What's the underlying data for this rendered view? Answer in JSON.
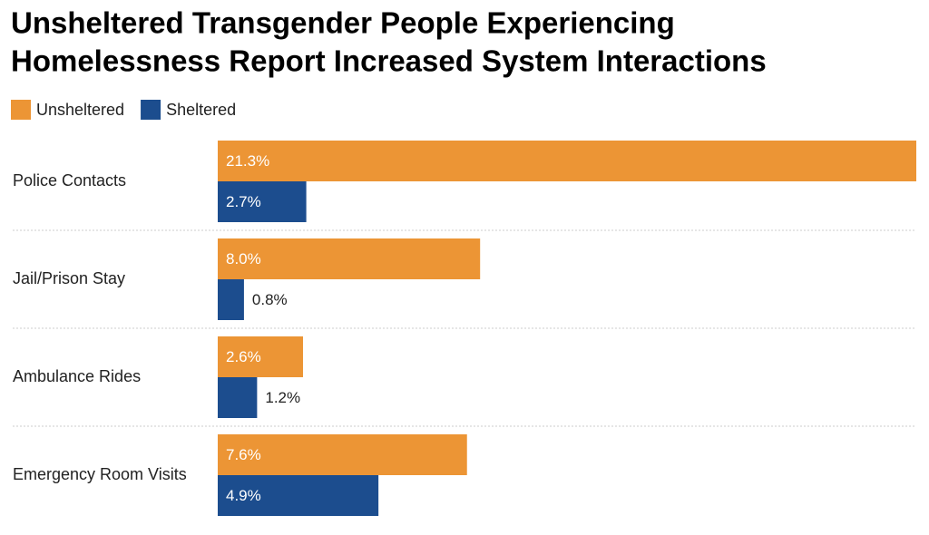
{
  "chart_data": {
    "type": "bar",
    "orientation": "horizontal",
    "title": [
      "Unsheltered Transgender People Experiencing",
      "Homelessness Report Increased System Interactions"
    ],
    "categories": [
      "Police Contacts",
      "Jail/Prison Stay",
      "Ambulance Rides",
      "Emergency Room Visits"
    ],
    "series": [
      {
        "name": "Unsheltered",
        "color": "#ec9535",
        "values": [
          21.3,
          8.0,
          2.6,
          7.6
        ],
        "value_labels": [
          "21.3%",
          "8.0%",
          "2.6%",
          "7.6%"
        ]
      },
      {
        "name": "Sheltered",
        "color": "#1c4d8e",
        "values": [
          2.7,
          0.8,
          1.2,
          4.9
        ],
        "value_labels": [
          "2.7%",
          "0.8%",
          "1.2%",
          "4.9%"
        ]
      }
    ]
  }
}
